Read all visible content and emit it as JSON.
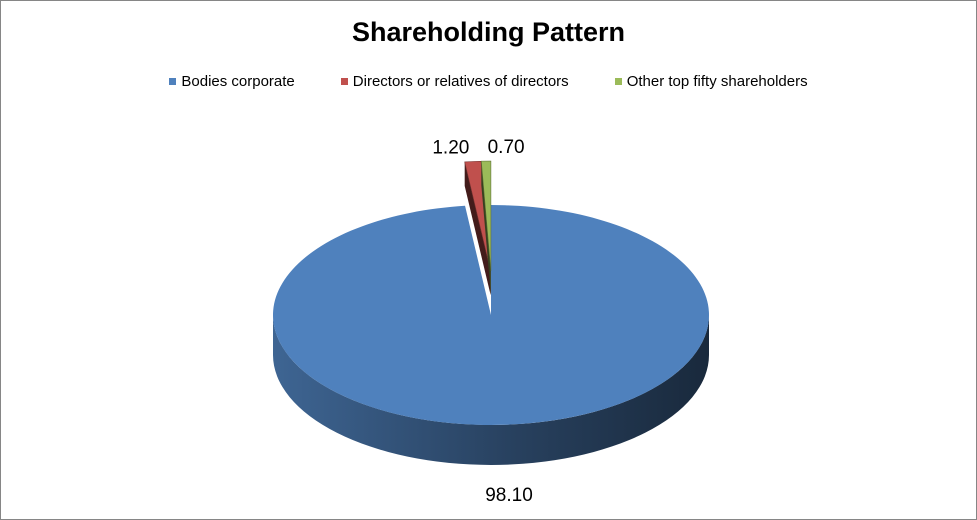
{
  "chart_data": {
    "type": "pie",
    "title": "Shareholding Pattern",
    "categories": [
      "Bodies corporate",
      "Directors or relatives of directors",
      "Other top fifty shareholders"
    ],
    "values": [
      98.1,
      1.2,
      0.7
    ],
    "data_labels": [
      "98.10",
      "1.20",
      "0.70"
    ],
    "colors": [
      "#4F81BD",
      "#C0504D",
      "#9BBB59"
    ],
    "legend_position": "top",
    "style": "3d-exploded"
  }
}
